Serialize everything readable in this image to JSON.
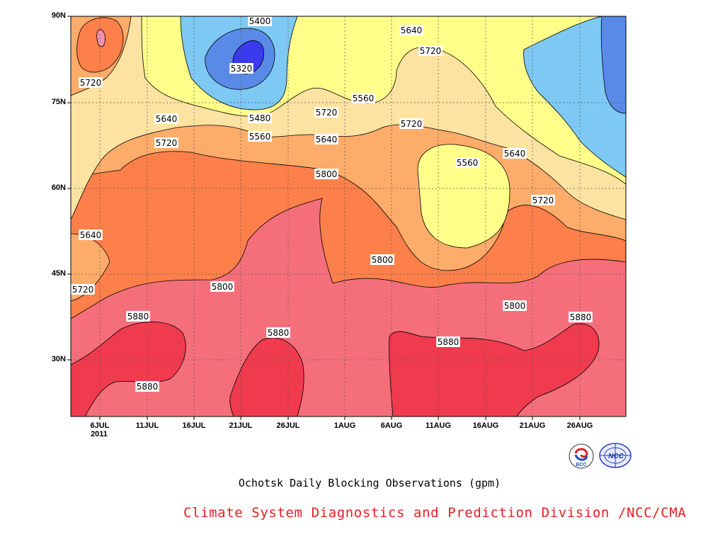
{
  "chart_data": {
    "type": "heatmap",
    "title": "Ochotsk Daily Blocking Observations (gpm)",
    "credit": "Climate System Diagnostics and Prediction Division /NCC/CMA",
    "x_ticks": [
      "6JUL",
      "11JUL",
      "16JUL",
      "21JUL",
      "26JUL",
      "1AUG",
      "6AUG",
      "11AUG",
      "16AUG",
      "21AUG",
      "26AUG"
    ],
    "x_year": "2011",
    "y_ticks": [
      "90N",
      "75N",
      "60N",
      "45N",
      "30N"
    ],
    "y_range": [
      "20N",
      "90N"
    ],
    "contour_levels": [
      5320,
      5400,
      5480,
      5560,
      5640,
      5720,
      5800,
      5880
    ],
    "colors": {
      "lt5320": "#3a3aee",
      "5320_5400": "#5a8ae8",
      "5400_5480": "#7ec8f4",
      "5480_5560": "#ffff8a",
      "5560_5640": "#fde3a2",
      "5640_5720": "#fdac6a",
      "5720_5800": "#fd7f4a",
      "5800_5880": "#f56f7b",
      "ge5880": "#f03a4d",
      "max_spot": "#f590b0"
    },
    "contour_labels": [
      "5400",
      "5320",
      "5640",
      "5720",
      "5720",
      "5560",
      "5640",
      "5480",
      "5560",
      "5720",
      "5640",
      "5720",
      "5720",
      "5560",
      "5640",
      "5800",
      "5720",
      "5640",
      "5720",
      "5800",
      "5800",
      "5800",
      "5880",
      "5880",
      "5880",
      "5880",
      "5880"
    ]
  },
  "logos": [
    "BCC",
    "NCC"
  ]
}
